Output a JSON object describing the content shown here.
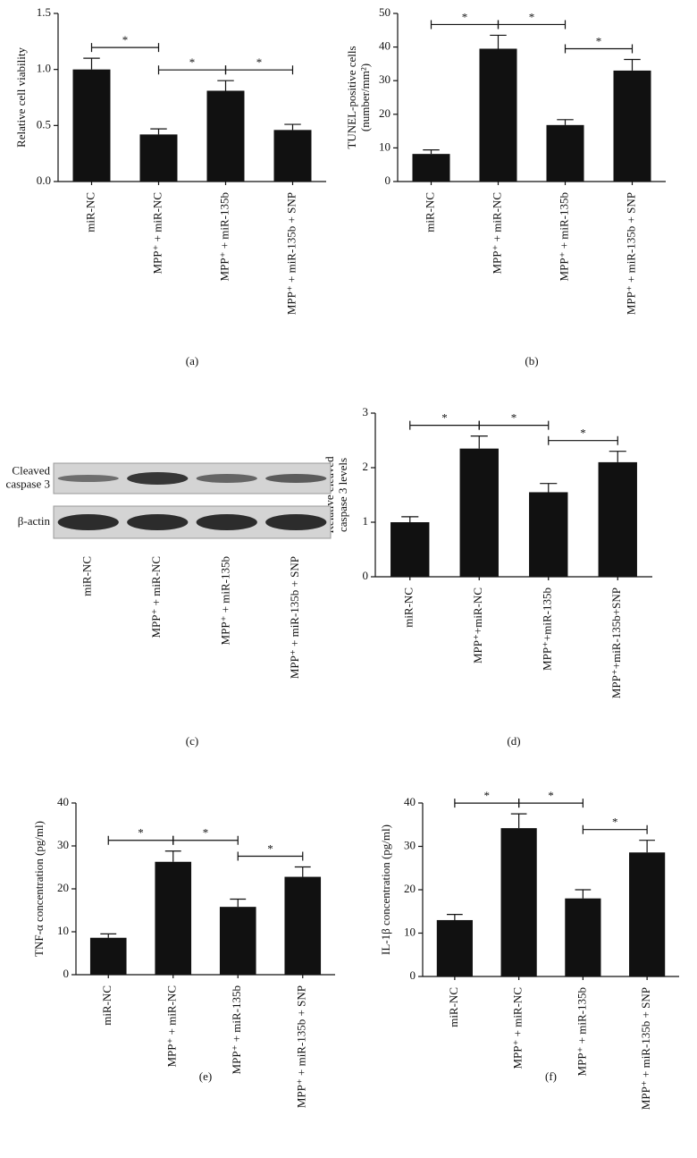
{
  "chart_data": [
    {
      "type": "bar",
      "panel": "(a)",
      "ylabel": [
        "Relative cell viability"
      ],
      "categories": [
        "miR-NC",
        "MPP⁺ + miR-NC",
        "MPP⁺ + miR-135b",
        "MPP⁺ + miR-135b + SNP"
      ],
      "values": [
        1.0,
        0.42,
        0.81,
        0.46
      ],
      "errors": [
        0.1,
        0.05,
        0.09,
        0.05
      ],
      "color": "#111111",
      "ylim": [
        0,
        1.5
      ],
      "yticks": [
        {
          "value": 0,
          "label": "0.0"
        },
        0.5,
        {
          "value": 1,
          "label": "1.0"
        },
        1.5
      ],
      "brackets": [
        {
          "from": 0,
          "to": 1,
          "label": "*"
        },
        {
          "from": 1,
          "to": 2,
          "label": "*"
        },
        {
          "from": 2,
          "to": 3,
          "label": "*"
        }
      ]
    },
    {
      "type": "bar",
      "panel": "(b)",
      "ylabel": [
        "TUNEL-positive cells",
        "(number/mm²)"
      ],
      "categories": [
        "miR-NC",
        "MPP⁺ + miR-NC",
        "MPP⁺ + miR-135b",
        "MPP⁺ + miR-135b + SNP"
      ],
      "values": [
        8.2,
        39.5,
        16.8,
        33
      ],
      "errors": [
        1.2,
        4,
        1.6,
        3.3
      ],
      "color": "#111111",
      "ylim": [
        0,
        50
      ],
      "yticks": [
        0,
        10,
        20,
        30,
        40,
        50
      ],
      "brackets": [
        {
          "from": 0,
          "to": 1,
          "label": "*"
        },
        {
          "from": 1,
          "to": 2,
          "label": "*"
        },
        {
          "from": 2,
          "to": 3,
          "label": "*"
        }
      ]
    },
    {
      "type": "bar",
      "panel": "(d)",
      "ylabel": [
        "Relative cleaved",
        "caspase 3 levels"
      ],
      "categories": [
        "miR-NC",
        "MPP⁺+miR-NC",
        "MPP⁺+miR-135b",
        "MPP⁺+miR-135b+SNP"
      ],
      "values": [
        1.0,
        2.35,
        1.55,
        2.1
      ],
      "errors": [
        0.1,
        0.23,
        0.16,
        0.2
      ],
      "color": "#111111",
      "ylim": [
        0,
        3
      ],
      "yticks": [
        0,
        1,
        2,
        3
      ],
      "brackets": [
        {
          "from": 0,
          "to": 1,
          "label": "*"
        },
        {
          "from": 1,
          "to": 2,
          "label": "*"
        },
        {
          "from": 2,
          "to": 3,
          "label": "*"
        }
      ]
    },
    {
      "type": "bar",
      "panel": "(e)",
      "ylabel": [
        "TNF-α concentration (pg/ml)"
      ],
      "categories": [
        "miR-NC",
        "MPP⁺ + miR-NC",
        "MPP⁺ + miR-135b",
        "MPP⁺ + miR-135b + SNP"
      ],
      "values": [
        8.6,
        26.3,
        15.8,
        22.8
      ],
      "errors": [
        0.9,
        2.5,
        1.8,
        2.3
      ],
      "color": "#111111",
      "ylim": [
        0,
        40
      ],
      "yticks": [
        0,
        10,
        20,
        30,
        40
      ],
      "brackets": [
        {
          "from": 0,
          "to": 1,
          "label": "*"
        },
        {
          "from": 1,
          "to": 2,
          "label": "*"
        },
        {
          "from": 2,
          "to": 3,
          "label": "*"
        }
      ]
    },
    {
      "type": "bar",
      "panel": "(f)",
      "ylabel": [
        "IL-1β concentration (pg/ml)"
      ],
      "categories": [
        "miR-NC",
        "MPP⁺ + miR-NC",
        "MPP⁺ + miR-135b",
        "MPP⁺ + miR-135b + SNP"
      ],
      "values": [
        13,
        34.2,
        18,
        28.6
      ],
      "errors": [
        1.3,
        3.3,
        2,
        2.8
      ],
      "color": "#111111",
      "ylim": [
        0,
        40
      ],
      "yticks": [
        0,
        10,
        20,
        30,
        40
      ],
      "brackets": [
        {
          "from": 0,
          "to": 1,
          "label": "*"
        },
        {
          "from": 1,
          "to": 2,
          "label": "*"
        },
        {
          "from": 2,
          "to": 3,
          "label": "*"
        }
      ]
    }
  ],
  "blot": {
    "panel": "(c)",
    "rows": [
      [
        "Cleaved",
        "caspase 3"
      ],
      [
        "β-actin"
      ]
    ],
    "categories": [
      "miR-NC",
      "MPP⁺ + miR-NC",
      "MPP⁺ + miR-135b",
      "MPP⁺ + miR-135b + SNP"
    ]
  }
}
